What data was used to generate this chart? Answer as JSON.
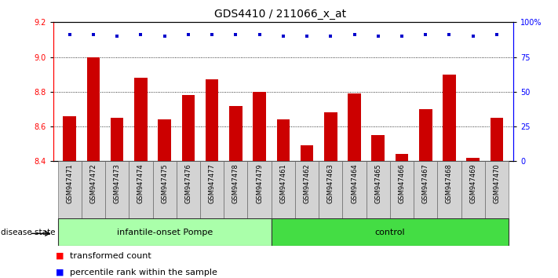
{
  "title": "GDS4410 / 211066_x_at",
  "samples": [
    "GSM947471",
    "GSM947472",
    "GSM947473",
    "GSM947474",
    "GSM947475",
    "GSM947476",
    "GSM947477",
    "GSM947478",
    "GSM947479",
    "GSM947461",
    "GSM947462",
    "GSM947463",
    "GSM947464",
    "GSM947465",
    "GSM947466",
    "GSM947467",
    "GSM947468",
    "GSM947469",
    "GSM947470"
  ],
  "transformed_counts": [
    8.66,
    9.0,
    8.65,
    8.88,
    8.64,
    8.78,
    8.87,
    8.72,
    8.8,
    8.64,
    8.49,
    8.68,
    8.79,
    8.55,
    8.44,
    8.7,
    8.9,
    8.42,
    8.65
  ],
  "percentile_ranks": [
    91,
    91,
    90,
    91,
    90,
    91,
    91,
    91,
    91,
    90,
    90,
    90,
    91,
    90,
    90,
    91,
    91,
    90,
    91
  ],
  "groups": {
    "infantile-onset Pompe": [
      0,
      8
    ],
    "control": [
      9,
      18
    ]
  },
  "group_colors": {
    "infantile-onset Pompe": "#aaffaa",
    "control": "#44dd44"
  },
  "bar_color": "#CC0000",
  "dot_color": "#0000CC",
  "ylim_left": [
    8.4,
    9.2
  ],
  "ylim_right": [
    0,
    100
  ],
  "yticks_left": [
    8.4,
    8.6,
    8.8,
    9.0,
    9.2
  ],
  "yticks_right": [
    0,
    25,
    50,
    75,
    100
  ],
  "ytick_labels_right": [
    "0",
    "25",
    "50",
    "75",
    "100%"
  ],
  "grid_values": [
    8.6,
    8.8,
    9.0
  ],
  "bar_bottom": 8.4,
  "title_fontsize": 10,
  "tick_fontsize": 7,
  "label_fontsize": 6,
  "legend_fontsize": 8,
  "group_label_fontsize": 8
}
